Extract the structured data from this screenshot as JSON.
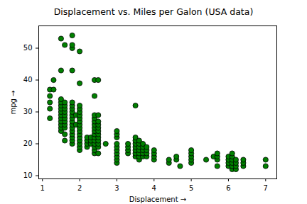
{
  "chart_data": {
    "type": "scatter",
    "title": "Displacement vs. Miles per Galon (USA data)",
    "x_label": "Displacement",
    "y_label": "mpg",
    "x": [
      1.2,
      1.2,
      1.2,
      1.2,
      1.2,
      1.3,
      1.3,
      1.5,
      1.5,
      1.5,
      1.5,
      1.5,
      1.5,
      1.5,
      1.5,
      1.5,
      1.5,
      1.5,
      1.5,
      1.5,
      1.6,
      1.6,
      1.6,
      1.6,
      1.6,
      1.6,
      1.6,
      1.6,
      1.6,
      1.6,
      1.6,
      1.6,
      1.8,
      1.8,
      1.8,
      1.8,
      1.8,
      1.8,
      1.8,
      1.8,
      1.8,
      1.8,
      1.8,
      1.8,
      1.8,
      1.8,
      1.8,
      1.8,
      1.8,
      1.8,
      1.9,
      1.9,
      2.0,
      2.0,
      2.0,
      2.0,
      2.0,
      2.0,
      2.0,
      2.0,
      2.0,
      2.0,
      2.0,
      2.0,
      2.0,
      2.0,
      2.0,
      2.0,
      2.0,
      2.2,
      2.2,
      2.2,
      2.2,
      2.3,
      2.3,
      2.3,
      2.4,
      2.4,
      2.4,
      2.4,
      2.4,
      2.4,
      2.4,
      2.4,
      2.4,
      2.4,
      2.4,
      2.4,
      2.4,
      2.4,
      2.4,
      2.5,
      2.5,
      2.5,
      2.5,
      2.5,
      2.5,
      2.5,
      2.5,
      2.5,
      2.5,
      2.5,
      2.5,
      2.7,
      3.0,
      3.0,
      3.0,
      3.0,
      3.0,
      3.0,
      3.0,
      3.0,
      3.0,
      3.0,
      3.3,
      3.3,
      3.3,
      3.3,
      3.5,
      3.5,
      3.5,
      3.5,
      3.5,
      3.5,
      3.5,
      3.5,
      3.6,
      3.6,
      3.6,
      3.6,
      3.6,
      3.6,
      3.6,
      3.7,
      3.7,
      3.7,
      3.7,
      3.7,
      3.8,
      3.8,
      3.8,
      3.8,
      4.0,
      4.0,
      4.0,
      4.0,
      4.4,
      4.4,
      4.6,
      4.6,
      4.7,
      5.0,
      5.0,
      5.0,
      5.0,
      5.0,
      5.4,
      5.6,
      5.7,
      5.7,
      5.7,
      5.7,
      6.0,
      6.0,
      6.0,
      6.0,
      6.1,
      6.1,
      6.1,
      6.1,
      6.1,
      6.1,
      6.2,
      6.2,
      6.2,
      6.2,
      6.4,
      6.4,
      6.4,
      7.0,
      7.0
    ],
    "values": [
      28,
      31,
      33,
      35,
      37,
      37,
      40,
      24,
      25,
      26,
      27,
      28,
      29,
      30,
      31,
      32,
      33,
      34,
      43,
      53,
      21,
      23,
      25,
      26,
      27,
      28,
      29,
      30,
      31,
      32,
      33,
      51,
      20,
      21,
      22,
      23,
      24,
      25,
      26,
      27,
      28,
      29,
      30,
      31,
      32,
      33,
      43,
      50,
      51,
      54,
      26,
      29,
      18,
      19,
      20,
      21,
      22,
      23,
      24,
      25,
      26,
      27,
      28,
      29,
      30,
      31,
      32,
      39,
      49,
      19,
      20,
      21,
      22,
      20,
      21,
      22,
      17,
      18,
      19,
      20,
      21,
      22,
      23,
      24,
      25,
      26,
      27,
      28,
      29,
      35,
      40,
      17,
      19,
      20,
      21,
      22,
      23,
      24,
      25,
      26,
      27,
      29,
      40,
      20,
      14,
      15,
      16,
      17,
      18,
      19,
      20,
      22,
      23,
      24,
      17,
      18,
      19,
      20,
      16,
      17,
      18,
      19,
      20,
      21,
      22,
      32,
      15,
      16,
      17,
      18,
      19,
      20,
      21,
      16,
      17,
      18,
      19,
      20,
      16,
      17,
      18,
      19,
      15,
      16,
      17,
      18,
      14,
      15,
      15,
      16,
      13,
      14,
      15,
      16,
      17,
      18,
      15,
      16,
      13,
      15,
      16,
      17,
      13,
      14,
      15,
      16,
      12,
      13,
      14,
      15,
      16,
      17,
      12,
      13,
      14,
      15,
      13,
      14,
      15,
      13,
      15
    ],
    "color": "#008000",
    "marker": "o",
    "xlim": [
      0.9,
      7.3
    ],
    "xticks": [
      1,
      2,
      3,
      4,
      5,
      6,
      7
    ],
    "ylim": [
      9,
      57
    ],
    "yticks": [
      10,
      20,
      30,
      40,
      50
    ],
    "grid": false
  }
}
